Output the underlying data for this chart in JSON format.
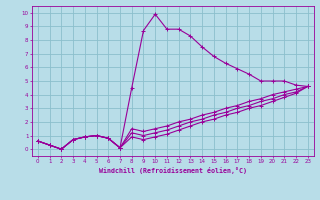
{
  "xlabel": "Windchill (Refroidissement éolien,°C)",
  "bg_color": "#b8dde8",
  "grid_color": "#8bbfcc",
  "line_color": "#990099",
  "xlim": [
    -0.5,
    23.5
  ],
  "ylim": [
    -0.5,
    10.5
  ],
  "xticks": [
    0,
    1,
    2,
    3,
    4,
    5,
    6,
    7,
    8,
    9,
    10,
    11,
    12,
    13,
    14,
    15,
    16,
    17,
    18,
    19,
    20,
    21,
    22,
    23
  ],
  "yticks": [
    0,
    1,
    2,
    3,
    4,
    5,
    6,
    7,
    8,
    9,
    10
  ],
  "line1_x": [
    0,
    1,
    2,
    3,
    4,
    5,
    6,
    7,
    8,
    9,
    10,
    11,
    12,
    13,
    14,
    15,
    16,
    17,
    18,
    19,
    20,
    21,
    22,
    23
  ],
  "line1_y": [
    0.6,
    0.3,
    0.0,
    0.7,
    0.9,
    1.0,
    0.8,
    0.1,
    4.5,
    8.7,
    9.9,
    8.8,
    8.8,
    8.3,
    7.5,
    6.8,
    6.3,
    5.9,
    5.5,
    5.0,
    5.0,
    5.0,
    4.7,
    4.6
  ],
  "line2_x": [
    0,
    1,
    2,
    3,
    4,
    5,
    6,
    7,
    8,
    9,
    10,
    11,
    12,
    13,
    14,
    15,
    16,
    17,
    18,
    19,
    20,
    21,
    22,
    23
  ],
  "line2_y": [
    0.6,
    0.3,
    0.0,
    0.7,
    0.9,
    1.0,
    0.8,
    0.1,
    1.5,
    1.3,
    1.5,
    1.7,
    2.0,
    2.2,
    2.5,
    2.7,
    3.0,
    3.2,
    3.5,
    3.7,
    4.0,
    4.2,
    4.4,
    4.6
  ],
  "line3_x": [
    0,
    1,
    2,
    3,
    4,
    5,
    6,
    7,
    8,
    9,
    10,
    11,
    12,
    13,
    14,
    15,
    16,
    17,
    18,
    19,
    20,
    21,
    22,
    23
  ],
  "line3_y": [
    0.6,
    0.3,
    0.0,
    0.7,
    0.9,
    1.0,
    0.8,
    0.1,
    1.2,
    1.0,
    1.2,
    1.4,
    1.7,
    2.0,
    2.2,
    2.5,
    2.7,
    3.0,
    3.2,
    3.5,
    3.7,
    4.0,
    4.2,
    4.6
  ],
  "line4_x": [
    0,
    1,
    2,
    3,
    4,
    5,
    6,
    7,
    8,
    9,
    10,
    11,
    12,
    13,
    14,
    15,
    16,
    17,
    18,
    19,
    20,
    21,
    22,
    23
  ],
  "line4_y": [
    0.6,
    0.3,
    0.0,
    0.7,
    0.9,
    1.0,
    0.8,
    0.1,
    0.9,
    0.7,
    0.9,
    1.1,
    1.4,
    1.7,
    2.0,
    2.2,
    2.5,
    2.7,
    3.0,
    3.2,
    3.5,
    3.8,
    4.1,
    4.6
  ]
}
